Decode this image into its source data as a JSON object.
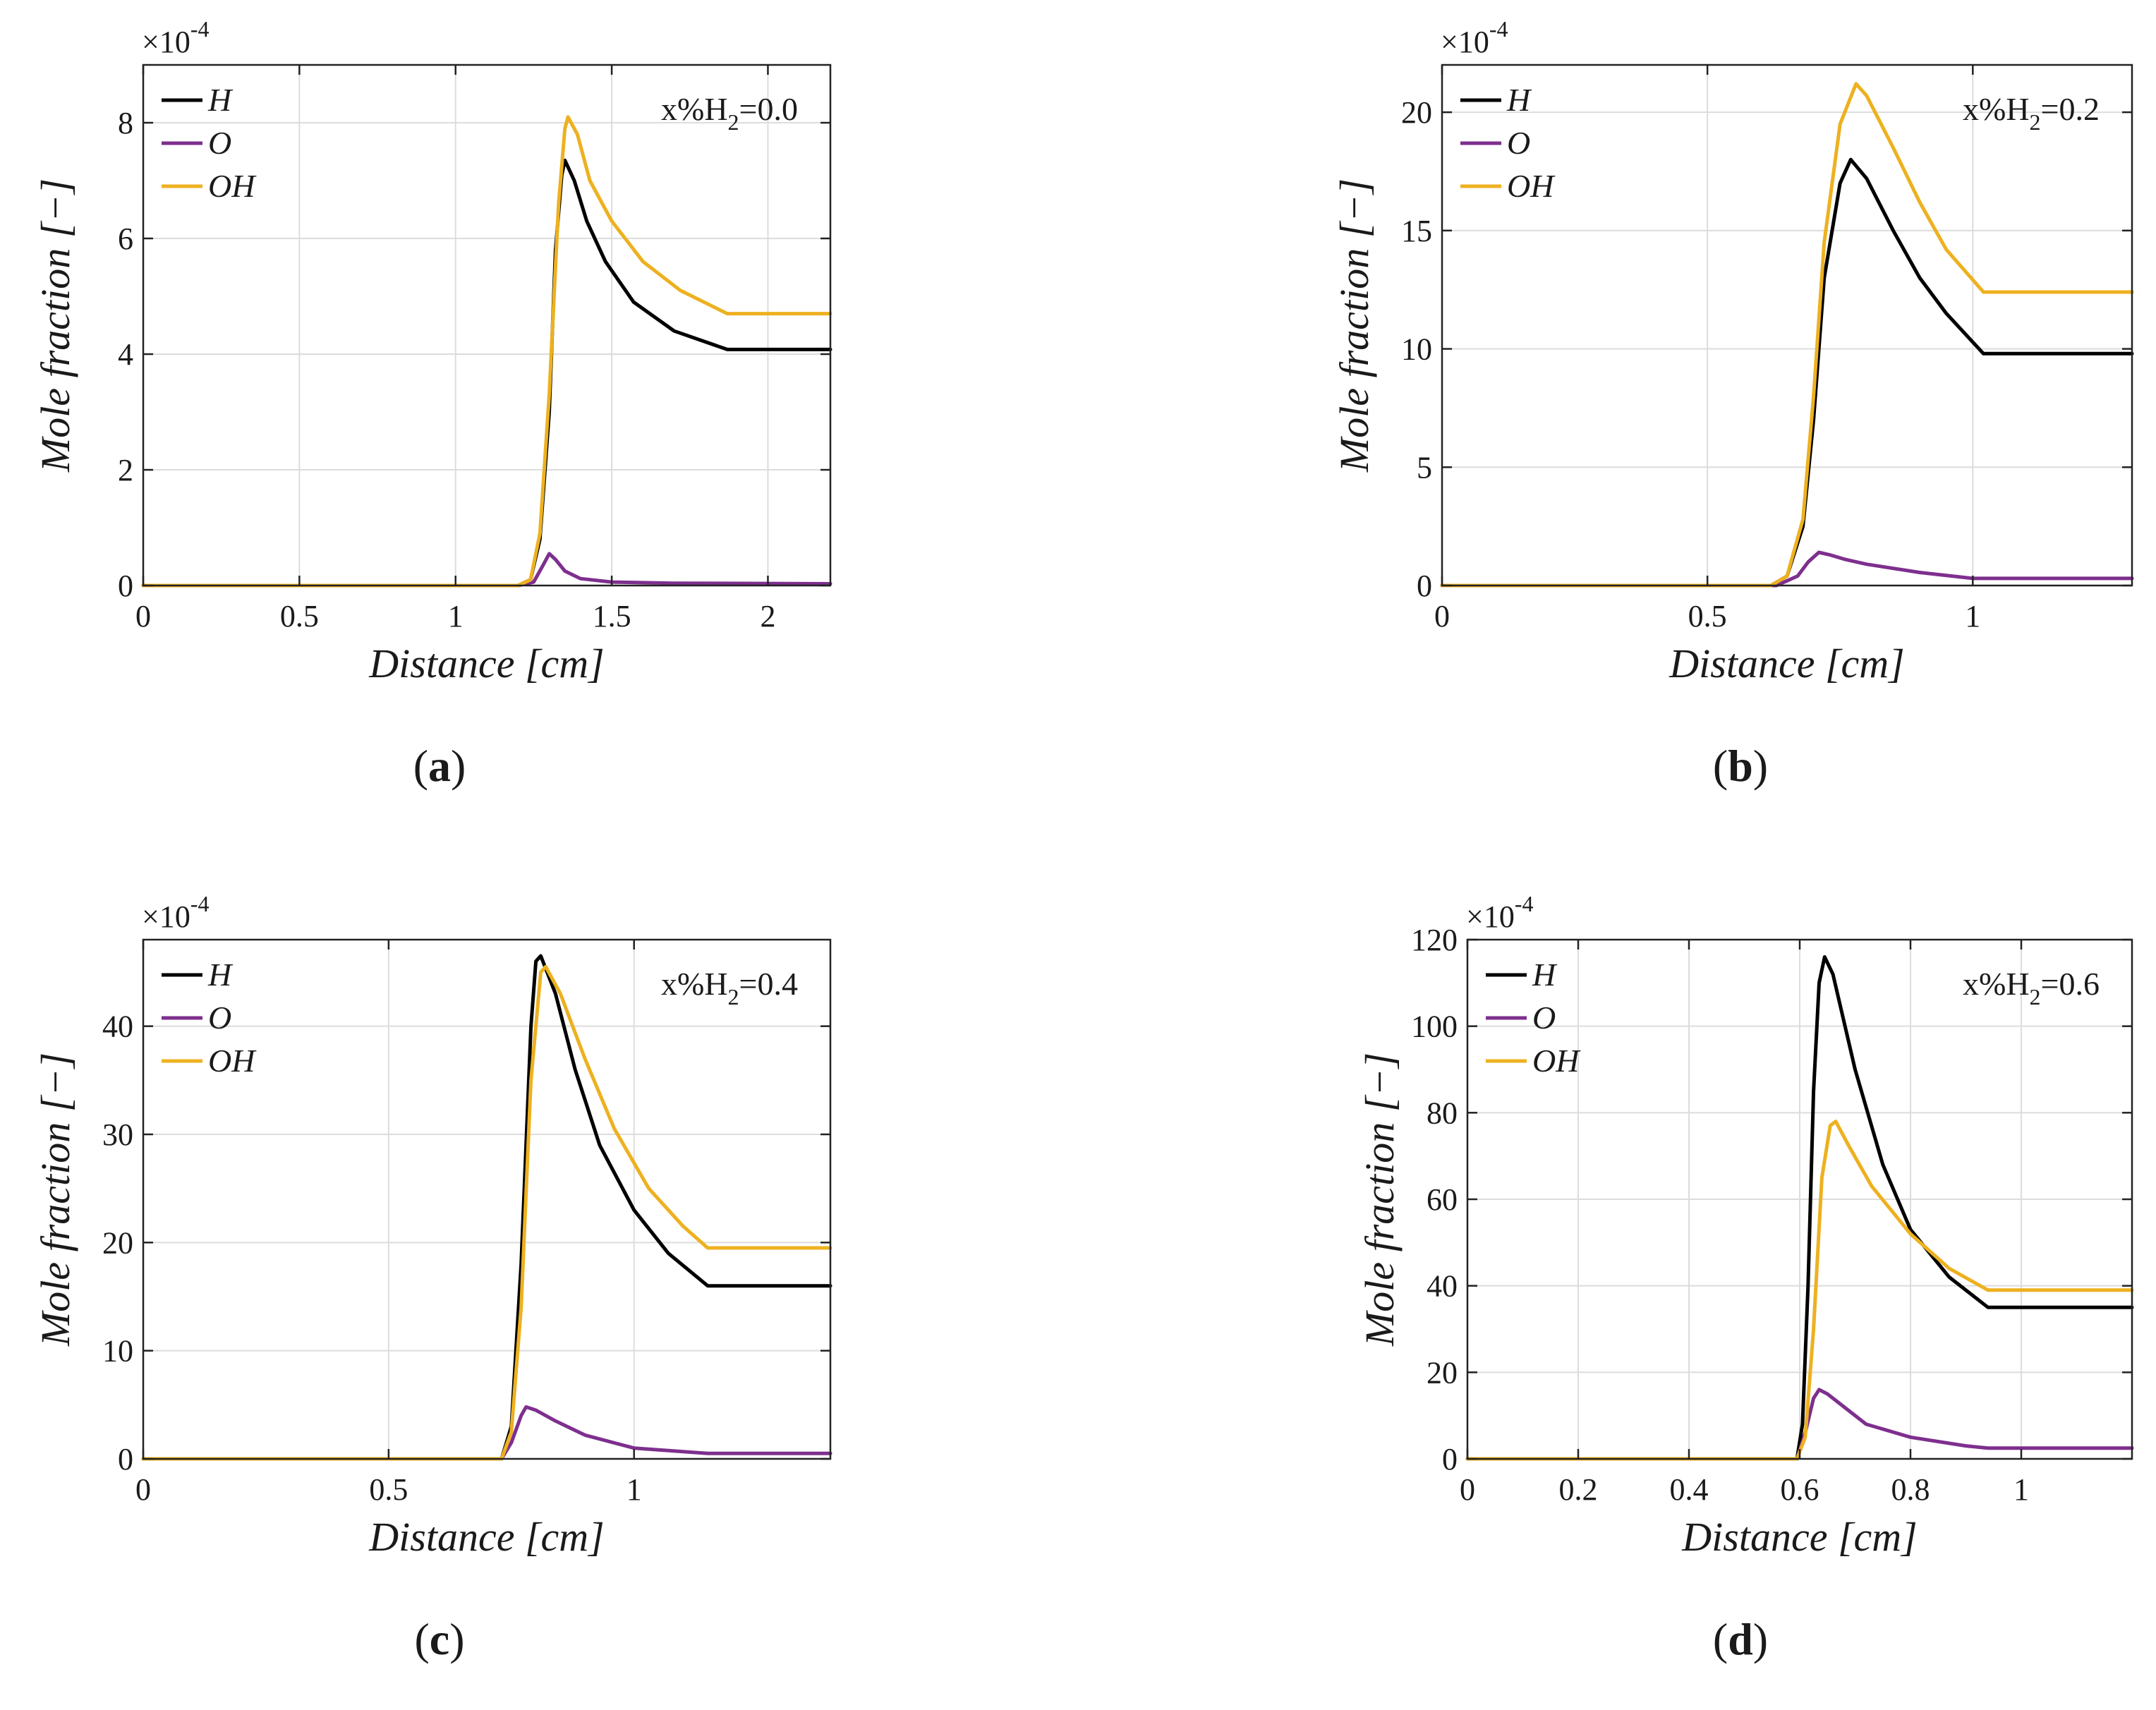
{
  "chart_data": [
    {
      "type": "line",
      "panel": "a",
      "annotation": {
        "base": "x%H",
        "sub": "2",
        "value": "=0.0"
      },
      "xlabel": "Distance [cm]",
      "ylabel": "Mole fraction [−]",
      "multiplier": {
        "base": "×10",
        "exp": "-4"
      },
      "xlim": [
        0,
        2.2
      ],
      "ylim": [
        0,
        9
      ],
      "xticks": [
        0,
        0.5,
        1,
        1.5,
        2
      ],
      "xtick_labels": [
        "0",
        "0.5",
        "1",
        "1.5",
        "2"
      ],
      "yticks": [
        0,
        2,
        4,
        6,
        8
      ],
      "ytick_labels": [
        "0",
        "2",
        "4",
        "6",
        "8"
      ],
      "legend": [
        "H",
        "O",
        "OH"
      ],
      "series": [
        {
          "name": "H",
          "color": "#000000",
          "x": [
            0,
            1.2,
            1.24,
            1.27,
            1.3,
            1.32,
            1.34,
            1.35,
            1.38,
            1.42,
            1.48,
            1.57,
            1.7,
            1.87,
            2.2
          ],
          "y": [
            0,
            0,
            0.1,
            0.8,
            3.0,
            5.8,
            7.1,
            7.35,
            7.0,
            6.3,
            5.6,
            4.9,
            4.4,
            4.08,
            4.08
          ]
        },
        {
          "name": "O",
          "color": "#7e2f8e",
          "x": [
            0,
            1.2,
            1.25,
            1.28,
            1.3,
            1.32,
            1.35,
            1.4,
            1.5,
            1.7,
            2.2
          ],
          "y": [
            0,
            0,
            0.06,
            0.35,
            0.55,
            0.45,
            0.25,
            0.12,
            0.06,
            0.04,
            0.03
          ]
        },
        {
          "name": "OH",
          "color": "#edb120",
          "x": [
            0,
            1.2,
            1.24,
            1.27,
            1.3,
            1.33,
            1.35,
            1.36,
            1.39,
            1.43,
            1.5,
            1.6,
            1.72,
            1.87,
            2.2
          ],
          "y": [
            0,
            0,
            0.1,
            0.9,
            3.3,
            6.6,
            7.9,
            8.1,
            7.8,
            7.0,
            6.3,
            5.6,
            5.1,
            4.7,
            4.7
          ]
        }
      ]
    },
    {
      "type": "line",
      "panel": "b",
      "annotation": {
        "base": "x%H",
        "sub": "2",
        "value": "=0.2"
      },
      "xlabel": "Distance [cm]",
      "ylabel": "Mole fraction [−]",
      "multiplier": {
        "base": "×10",
        "exp": "-4"
      },
      "xlim": [
        0,
        1.3
      ],
      "ylim": [
        0,
        22
      ],
      "xticks": [
        0,
        0.5,
        1
      ],
      "xtick_labels": [
        "0",
        "0.5",
        "1"
      ],
      "yticks": [
        0,
        5,
        10,
        15,
        20
      ],
      "ytick_labels": [
        "0",
        "5",
        "10",
        "15",
        "20"
      ],
      "legend": [
        "H",
        "O",
        "OH"
      ],
      "series": [
        {
          "name": "H",
          "color": "#000000",
          "x": [
            0,
            0.62,
            0.65,
            0.68,
            0.7,
            0.72,
            0.75,
            0.77,
            0.8,
            0.85,
            0.9,
            0.95,
            1.02,
            1.3
          ],
          "y": [
            0,
            0,
            0.4,
            2.5,
            7.0,
            13.0,
            17.0,
            18.0,
            17.2,
            15.0,
            13.0,
            11.5,
            9.8,
            9.8
          ]
        },
        {
          "name": "O",
          "color": "#7e2f8e",
          "x": [
            0,
            0.63,
            0.67,
            0.69,
            0.71,
            0.73,
            0.76,
            0.8,
            0.9,
            1.0,
            1.3
          ],
          "y": [
            0,
            0,
            0.4,
            1.0,
            1.4,
            1.3,
            1.1,
            0.9,
            0.55,
            0.3,
            0.3
          ]
        },
        {
          "name": "OH",
          "color": "#edb120",
          "x": [
            0,
            0.62,
            0.65,
            0.68,
            0.7,
            0.72,
            0.75,
            0.78,
            0.8,
            0.85,
            0.9,
            0.95,
            1.02,
            1.3
          ],
          "y": [
            0,
            0,
            0.4,
            2.8,
            8.0,
            14.5,
            19.5,
            21.2,
            20.7,
            18.5,
            16.2,
            14.2,
            12.4,
            12.4
          ]
        }
      ]
    },
    {
      "type": "line",
      "panel": "c",
      "annotation": {
        "base": "x%H",
        "sub": "2",
        "value": "=0.4"
      },
      "xlabel": "Distance [cm]",
      "ylabel": "Mole fraction [−]",
      "multiplier": {
        "base": "×10",
        "exp": "-4"
      },
      "xlim": [
        0,
        1.4
      ],
      "ylim": [
        0,
        48
      ],
      "xticks": [
        0,
        0.5,
        1
      ],
      "xtick_labels": [
        "0",
        "0.5",
        "1"
      ],
      "yticks": [
        0,
        10,
        20,
        30,
        40
      ],
      "ytick_labels": [
        "0",
        "10",
        "20",
        "30",
        "40"
      ],
      "legend": [
        "H",
        "O",
        "OH"
      ],
      "series": [
        {
          "name": "H",
          "color": "#000000",
          "x": [
            0,
            0.73,
            0.75,
            0.77,
            0.79,
            0.8,
            0.81,
            0.84,
            0.88,
            0.93,
            1.0,
            1.07,
            1.15,
            1.4
          ],
          "y": [
            0,
            0,
            3.0,
            18.0,
            40.0,
            46.0,
            46.5,
            43.0,
            36.0,
            29.0,
            23.0,
            19.0,
            16.0,
            16.0
          ]
        },
        {
          "name": "O",
          "color": "#7e2f8e",
          "x": [
            0,
            0.73,
            0.75,
            0.77,
            0.78,
            0.8,
            0.84,
            0.9,
            1.0,
            1.15,
            1.4
          ],
          "y": [
            0,
            0,
            1.5,
            4.0,
            4.8,
            4.5,
            3.5,
            2.2,
            1.0,
            0.5,
            0.5
          ]
        },
        {
          "name": "OH",
          "color": "#edb120",
          "x": [
            0,
            0.73,
            0.75,
            0.77,
            0.79,
            0.81,
            0.82,
            0.85,
            0.9,
            0.96,
            1.03,
            1.1,
            1.15,
            1.4
          ],
          "y": [
            0,
            0,
            2.5,
            14.0,
            35.0,
            45.0,
            45.5,
            43.0,
            37.0,
            30.5,
            25.0,
            21.5,
            19.5,
            19.5
          ]
        }
      ]
    },
    {
      "type": "line",
      "panel": "d",
      "annotation": {
        "base": "x%H",
        "sub": "2",
        "value": "=0.6"
      },
      "xlabel": "Distance [cm]",
      "ylabel": "Mole fraction [−]",
      "multiplier": {
        "base": "×10",
        "exp": "-4"
      },
      "xlim": [
        0,
        1.2
      ],
      "ylim": [
        0,
        120
      ],
      "xticks": [
        0,
        0.2,
        0.4,
        0.6,
        0.8,
        1
      ],
      "xtick_labels": [
        "0",
        "0.2",
        "0.4",
        "0.6",
        "0.8",
        "1"
      ],
      "yticks": [
        0,
        20,
        40,
        60,
        80,
        100,
        120
      ],
      "ytick_labels": [
        "0",
        "20",
        "40",
        "60",
        "80",
        "100",
        "120"
      ],
      "legend": [
        "H",
        "O",
        "OH"
      ],
      "series": [
        {
          "name": "H",
          "color": "#000000",
          "x": [
            0,
            0.595,
            0.605,
            0.615,
            0.625,
            0.635,
            0.645,
            0.66,
            0.7,
            0.75,
            0.8,
            0.87,
            0.94,
            1.2
          ],
          "y": [
            0,
            0,
            8.0,
            40.0,
            85.0,
            110.0,
            116.0,
            112.0,
            90.0,
            68.0,
            53.0,
            42.0,
            35.0,
            35.0
          ]
        },
        {
          "name": "O",
          "color": "#7e2f8e",
          "x": [
            0,
            0.595,
            0.61,
            0.625,
            0.635,
            0.65,
            0.68,
            0.72,
            0.8,
            0.9,
            0.94,
            1.2
          ],
          "y": [
            0,
            0,
            6.0,
            14.0,
            16.0,
            15.0,
            12.0,
            8.0,
            5.0,
            3.0,
            2.5,
            2.5
          ]
        },
        {
          "name": "OH",
          "color": "#edb120",
          "x": [
            0,
            0.595,
            0.61,
            0.625,
            0.64,
            0.655,
            0.665,
            0.69,
            0.73,
            0.8,
            0.87,
            0.94,
            1.2
          ],
          "y": [
            0,
            0,
            5.0,
            30.0,
            65.0,
            77.0,
            78.0,
            72.0,
            63.0,
            52.0,
            44.0,
            39.0,
            39.0
          ]
        }
      ]
    }
  ],
  "panel_tags": [
    {
      "open": "(",
      "letter": "a",
      "close": ")"
    },
    {
      "open": "(",
      "letter": "b",
      "close": ")"
    },
    {
      "open": "(",
      "letter": "c",
      "close": ")"
    },
    {
      "open": "(",
      "letter": "d",
      "close": ")"
    }
  ]
}
